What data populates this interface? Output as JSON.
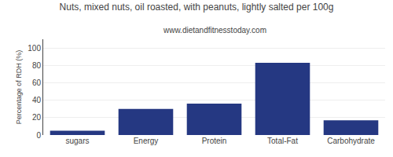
{
  "chart_data": {
    "type": "bar",
    "title": "Nuts, mixed nuts, oil roasted, with peanuts, lightly salted per 100g",
    "subtitle": "www.dietandfitnesstoday.com",
    "ylabel": "Percentage of RDH (%)",
    "categories": [
      "sugars",
      "Energy",
      "Protein",
      "Total-Fat",
      "Carbohydrate"
    ],
    "values": [
      5,
      30,
      36,
      83,
      17
    ],
    "color": "#253882",
    "ylim": [
      0,
      110
    ],
    "yticks": [
      0,
      20,
      40,
      60,
      80,
      100
    ],
    "grid": true
  }
}
